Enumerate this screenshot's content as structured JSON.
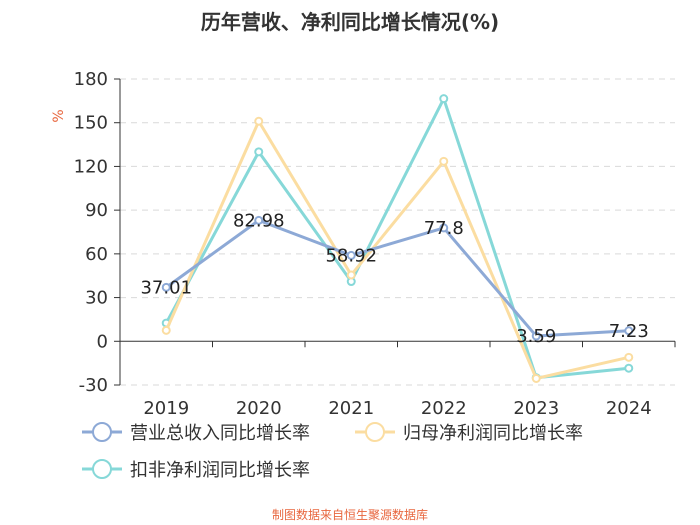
{
  "chart_data": {
    "type": "line",
    "title": "历年营收、净利同比增长情况(%)",
    "ylabel": "%",
    "ylim": [
      -30,
      180
    ],
    "yticks": [
      -30,
      0,
      30,
      60,
      90,
      120,
      150,
      180
    ],
    "categories": [
      "2019",
      "2020",
      "2021",
      "2022",
      "2023",
      "2024"
    ],
    "series": [
      {
        "name": "营业总收入同比增长率",
        "color": "#8DA9D6",
        "values": [
          37.01,
          82.98,
          58.92,
          77.8,
          3.59,
          7.23
        ],
        "labels": [
          "37.01",
          "82.98",
          "58.92",
          "77.8",
          "3.59",
          "7.23"
        ]
      },
      {
        "name": "归母净利润同比增长率",
        "color": "#FBDDA1",
        "values": [
          7.5,
          151,
          45.5,
          123.5,
          -25.5,
          -11
        ]
      },
      {
        "name": "扣非净利润同比增长率",
        "color": "#86D8D8",
        "values": [
          12.5,
          130,
          41,
          166.5,
          -25,
          -18.5
        ]
      }
    ],
    "grid": true
  },
  "source": "制图数据来自恒生聚源数据库",
  "colors": {
    "source": "#E8673F",
    "axis": "#333333",
    "grid": "#d9d9d9",
    "ylabel": "#E8673F"
  }
}
